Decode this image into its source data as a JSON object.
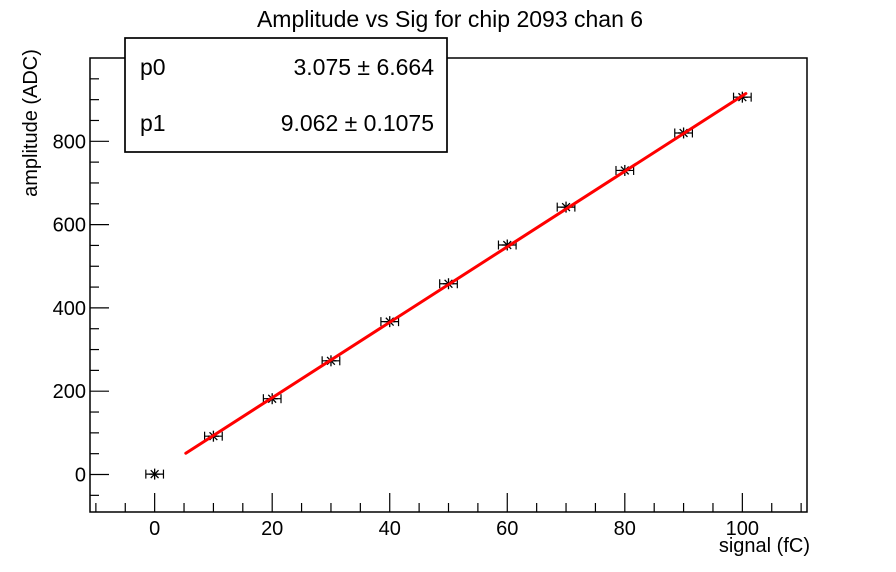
{
  "title": "Amplitude vs Sig for chip 2093 chan 6",
  "stats_box": {
    "rows": [
      {
        "name": "p0",
        "value": "3.075 ± 6.664"
      },
      {
        "name": "p1",
        "value": "9.062 ± 0.1075"
      }
    ]
  },
  "chart_data": {
    "type": "scatter",
    "title": "Amplitude vs Sig for chip 2093 chan 6",
    "xlabel": "signal (fC)",
    "ylabel": "amplitude (ADC)",
    "xlim": [
      -11,
      111
    ],
    "ylim": [
      -90,
      1000
    ],
    "x_major_ticks": [
      0,
      20,
      40,
      60,
      80,
      100
    ],
    "y_major_ticks": [
      0,
      200,
      400,
      600,
      800
    ],
    "x_minor_step": 5,
    "x_minor_range": [
      -10,
      110
    ],
    "y_minor_step": 50,
    "y_minor_range": [
      -50,
      950
    ],
    "grid": false,
    "legend": "none",
    "points": {
      "x": [
        0,
        10,
        20,
        30,
        40,
        50,
        60,
        70,
        80,
        90,
        100
      ],
      "y": [
        1,
        92,
        182,
        273,
        367,
        458,
        551,
        642,
        730,
        820,
        906
      ],
      "xerr": 1.5,
      "marker": "asterisk-8-spoke"
    },
    "fit": {
      "name": "linear",
      "p0": 3.075,
      "p1": 9.062,
      "x_start": 5.3,
      "x_end": 100.6
    },
    "colors": {
      "axis": "#000000",
      "marker": "#000000",
      "fit_line": "#ff0000",
      "background": "#ffffff",
      "stats_fill": "#ffffff"
    }
  }
}
